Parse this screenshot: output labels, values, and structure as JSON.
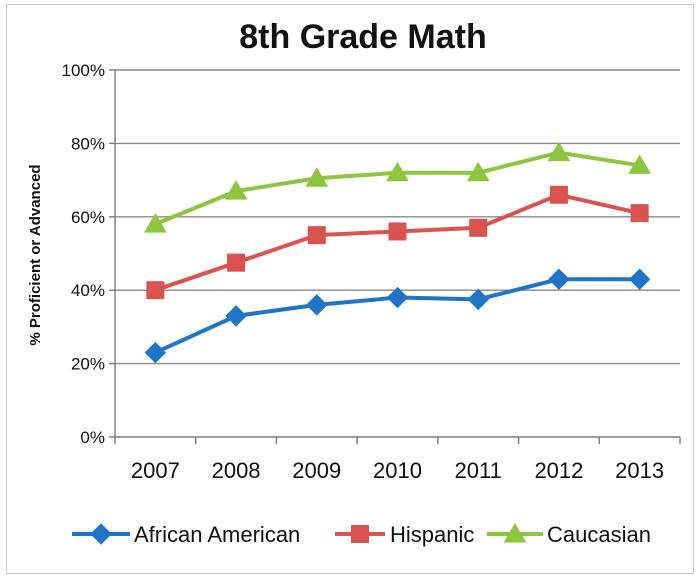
{
  "chart_data": {
    "type": "line",
    "title": "8th Grade Math",
    "xlabel": "",
    "ylabel": "% Proficient or Advanced",
    "x": [
      "2007",
      "2008",
      "2009",
      "2010",
      "2011",
      "2012",
      "2013"
    ],
    "ylim": [
      0,
      100
    ],
    "yticks": [
      "0%",
      "20%",
      "40%",
      "60%",
      "80%",
      "100%"
    ],
    "grid": true,
    "legend_position": "bottom",
    "series": [
      {
        "name": "African American",
        "marker": "diamond",
        "color": "#1f74c8",
        "values": [
          23,
          33,
          36,
          38,
          37.5,
          43,
          43
        ]
      },
      {
        "name": "Hispanic",
        "marker": "square",
        "color": "#d9534f",
        "values": [
          40,
          47.5,
          55,
          56,
          57,
          66,
          61
        ]
      },
      {
        "name": "Caucasian",
        "marker": "triangle",
        "color": "#8cc63f",
        "values": [
          58,
          67,
          70.5,
          72,
          72,
          77.5,
          74
        ]
      }
    ]
  }
}
